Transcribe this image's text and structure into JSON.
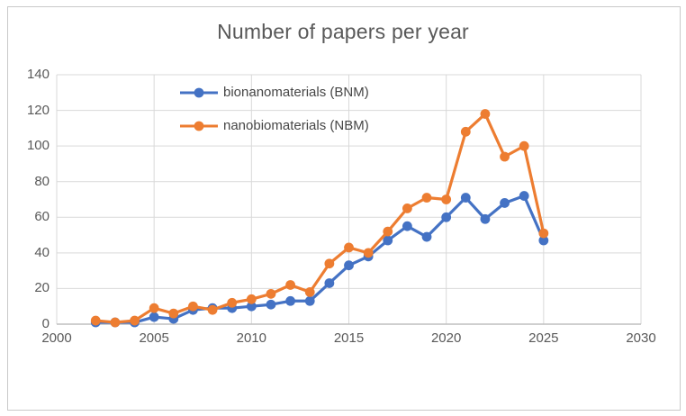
{
  "chart_data": {
    "type": "line",
    "title": "Number of papers per year",
    "x": [
      2002,
      2003,
      2004,
      2005,
      2006,
      2007,
      2008,
      2009,
      2010,
      2011,
      2012,
      2013,
      2014,
      2015,
      2016,
      2017,
      2018,
      2019,
      2020,
      2021,
      2022,
      2023,
      2024,
      2025
    ],
    "series": [
      {
        "name": "bionanomaterials (BNM)",
        "color": "#4472C4",
        "values": [
          1,
          1,
          1,
          4,
          3,
          8,
          9,
          9,
          10,
          11,
          13,
          13,
          23,
          33,
          38,
          47,
          55,
          49,
          60,
          71,
          59,
          68,
          72,
          47
        ]
      },
      {
        "name": "nanobiomaterials (NBM)",
        "color": "#ED7D31",
        "values": [
          2,
          1,
          2,
          9,
          6,
          10,
          8,
          12,
          14,
          17,
          22,
          18,
          34,
          43,
          40,
          52,
          65,
          71,
          70,
          108,
          118,
          94,
          100,
          51
        ]
      }
    ],
    "xlabel": "",
    "ylabel": "",
    "xlim": [
      2000,
      2030
    ],
    "ylim": [
      0,
      140
    ],
    "x_ticks": [
      2000,
      2005,
      2010,
      2015,
      2020,
      2025,
      2030
    ],
    "y_ticks": [
      0,
      20,
      40,
      60,
      80,
      100,
      120,
      140
    ],
    "grid": true,
    "legend_position": "inside-top-left"
  },
  "colors": {
    "gridline": "#D9D9D9",
    "axis_line": "#BFBFBF",
    "tick_text": "#595959",
    "legend_text": "#464646",
    "frame_border": "#C9C9C9",
    "background": "#FFFFFF"
  }
}
